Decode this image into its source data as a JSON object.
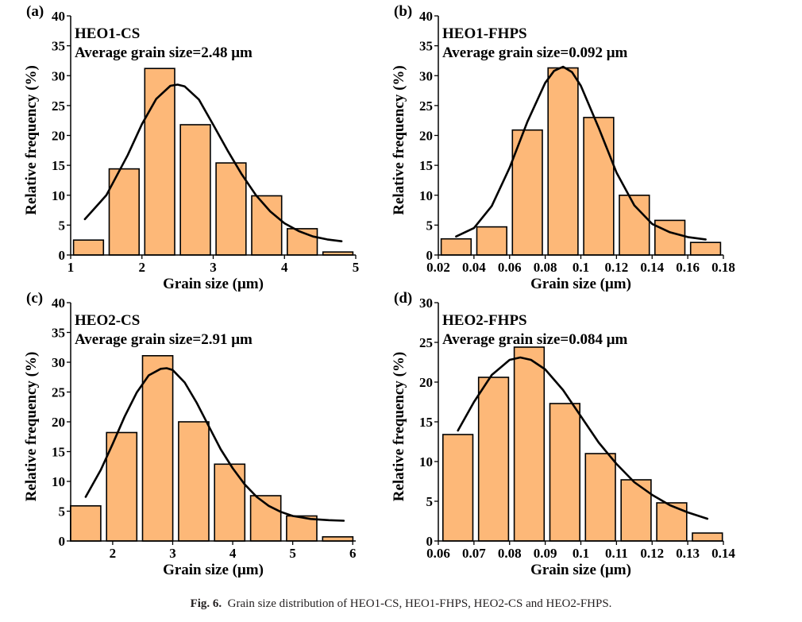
{
  "caption": {
    "label": "Fig. 6.",
    "text": "Grain size distribution of HEO1-CS, HEO1-FHPS, HEO2-CS and HEO2-FHPS."
  },
  "colors": {
    "bar_fill": "#fdb878",
    "bar_stroke": "#000000",
    "curve": "#000000",
    "text": "#000000"
  },
  "chart_data": [
    {
      "type": "bar",
      "panel_label": "(a)",
      "title": "HEO1-CS",
      "subtitle": "Average grain size=2.48 μm",
      "xlabel": "Grain size (μm)",
      "ylabel": "Relative frequency (%)",
      "xlim": [
        1,
        5
      ],
      "ylim": [
        0,
        40
      ],
      "xticks": [
        "1",
        "2",
        "3",
        "4",
        "5"
      ],
      "xtick_values": [
        1,
        2,
        3,
        4,
        5
      ],
      "yticks": [
        "0",
        "5",
        "10",
        "15",
        "20",
        "25",
        "30",
        "35",
        "40"
      ],
      "ytick_values": [
        0,
        5,
        10,
        15,
        20,
        25,
        30,
        35,
        40
      ],
      "bin_width": 0.5,
      "bin_centers": [
        1.25,
        1.75,
        2.25,
        2.75,
        3.25,
        3.75,
        4.25,
        4.75
      ],
      "values": [
        2.5,
        14.4,
        31.2,
        21.8,
        15.4,
        9.9,
        4.4,
        0.5
      ],
      "fit_curve": {
        "x": [
          1.2,
          1.5,
          1.8,
          2.0,
          2.2,
          2.4,
          2.5,
          2.6,
          2.8,
          3.0,
          3.2,
          3.4,
          3.6,
          3.8,
          4.0,
          4.2,
          4.4,
          4.6,
          4.8
        ],
        "y": [
          6.0,
          10.0,
          16.7,
          21.9,
          26.1,
          28.3,
          28.5,
          28.2,
          26.0,
          21.8,
          17.5,
          13.5,
          10.0,
          7.3,
          5.3,
          4.0,
          3.1,
          2.6,
          2.3
        ]
      }
    },
    {
      "type": "bar",
      "panel_label": "(b)",
      "title": "HEO1-FHPS",
      "subtitle": "Average grain size=0.092 μm",
      "xlabel": "Grain size (μm)",
      "ylabel": "Relative frequency (%)",
      "xlim": [
        0.02,
        0.18
      ],
      "ylim": [
        0,
        40
      ],
      "xticks": [
        "0.02",
        "0.04",
        "0.06",
        "0.08",
        "0.1",
        "0.12",
        "0.14",
        "0.16",
        "0.18"
      ],
      "xtick_values": [
        0.02,
        0.04,
        0.06,
        0.08,
        0.1,
        0.12,
        0.14,
        0.16,
        0.18
      ],
      "yticks": [
        "0",
        "5",
        "10",
        "15",
        "20",
        "25",
        "30",
        "35",
        "40"
      ],
      "ytick_values": [
        0,
        5,
        10,
        15,
        20,
        25,
        30,
        35,
        40
      ],
      "bin_width": 0.02,
      "bin_centers": [
        0.03,
        0.05,
        0.07,
        0.09,
        0.11,
        0.13,
        0.15,
        0.17
      ],
      "values": [
        2.7,
        4.7,
        20.9,
        31.3,
        23.0,
        10.0,
        5.8,
        2.1
      ],
      "fit_curve": {
        "x": [
          0.03,
          0.04,
          0.05,
          0.06,
          0.07,
          0.08,
          0.085,
          0.09,
          0.095,
          0.1,
          0.11,
          0.12,
          0.13,
          0.14,
          0.15,
          0.16,
          0.17
        ],
        "y": [
          3.1,
          4.5,
          8.2,
          14.6,
          22.3,
          28.8,
          30.8,
          31.5,
          30.6,
          28.3,
          21.3,
          13.8,
          8.3,
          5.2,
          3.8,
          3.0,
          2.6
        ]
      }
    },
    {
      "type": "bar",
      "panel_label": "(c)",
      "title": "HEO2-CS",
      "subtitle": "Average grain size=2.91 μm",
      "xlabel": "Grain size (μm)",
      "ylabel": "Relative frequency (%)",
      "xlim": [
        1.3,
        6.05
      ],
      "ylim": [
        0,
        40
      ],
      "xticks": [
        "2",
        "3",
        "4",
        "5",
        "6"
      ],
      "xtick_values": [
        2,
        3,
        4,
        5,
        6
      ],
      "yticks": [
        "0",
        "5",
        "10",
        "15",
        "20",
        "25",
        "30",
        "35",
        "40"
      ],
      "ytick_values": [
        0,
        5,
        10,
        15,
        20,
        25,
        30,
        35,
        40
      ],
      "bin_width": 0.6,
      "bin_centers": [
        1.55,
        2.15,
        2.75,
        3.35,
        3.95,
        4.55,
        5.15,
        5.75
      ],
      "values": [
        5.9,
        18.2,
        31.1,
        20.0,
        12.9,
        7.6,
        4.2,
        0.7
      ],
      "fit_curve": {
        "x": [
          1.55,
          1.8,
          2.0,
          2.2,
          2.4,
          2.6,
          2.8,
          2.9,
          3.0,
          3.2,
          3.4,
          3.6,
          3.8,
          4.0,
          4.2,
          4.4,
          4.6,
          4.8,
          5.0,
          5.3,
          5.6,
          5.85
        ],
        "y": [
          7.4,
          11.9,
          16.3,
          20.9,
          24.9,
          27.8,
          28.9,
          29.0,
          28.7,
          26.6,
          23.2,
          19.3,
          15.4,
          12.2,
          9.5,
          7.4,
          5.9,
          4.9,
          4.2,
          3.7,
          3.5,
          3.4
        ]
      }
    },
    {
      "type": "bar",
      "panel_label": "(d)",
      "title": "HEO2-FHPS",
      "subtitle": "Average grain size=0.084 μm",
      "xlabel": "Grain size (μm)",
      "ylabel": "Relative frequency (%)",
      "xlim": [
        0.06,
        0.14
      ],
      "ylim": [
        0,
        30
      ],
      "xticks": [
        "0.06",
        "0.07",
        "0.08",
        "0.09",
        "0.1",
        "0.11",
        "0.12",
        "0.13",
        "0.14"
      ],
      "xtick_values": [
        0.06,
        0.07,
        0.08,
        0.09,
        0.1,
        0.11,
        0.12,
        0.13,
        0.14
      ],
      "yticks": [
        "0",
        "5",
        "10",
        "15",
        "20",
        "25",
        "30"
      ],
      "ytick_values": [
        0,
        5,
        10,
        15,
        20,
        25,
        30
      ],
      "bin_width": 0.01,
      "bin_centers": [
        0.0655,
        0.0755,
        0.0855,
        0.0955,
        0.1055,
        0.1155,
        0.1255,
        0.1355
      ],
      "values": [
        13.4,
        20.6,
        24.4,
        17.3,
        11.0,
        7.7,
        4.8,
        1.0
      ],
      "fit_curve": {
        "x": [
          0.0655,
          0.07,
          0.075,
          0.08,
          0.083,
          0.086,
          0.09,
          0.095,
          0.1,
          0.105,
          0.11,
          0.115,
          0.12,
          0.125,
          0.13,
          0.1355
        ],
        "y": [
          13.9,
          17.5,
          20.9,
          22.8,
          23.1,
          22.8,
          21.6,
          19.0,
          15.7,
          12.4,
          9.7,
          7.4,
          5.8,
          4.5,
          3.6,
          2.8
        ]
      }
    }
  ]
}
